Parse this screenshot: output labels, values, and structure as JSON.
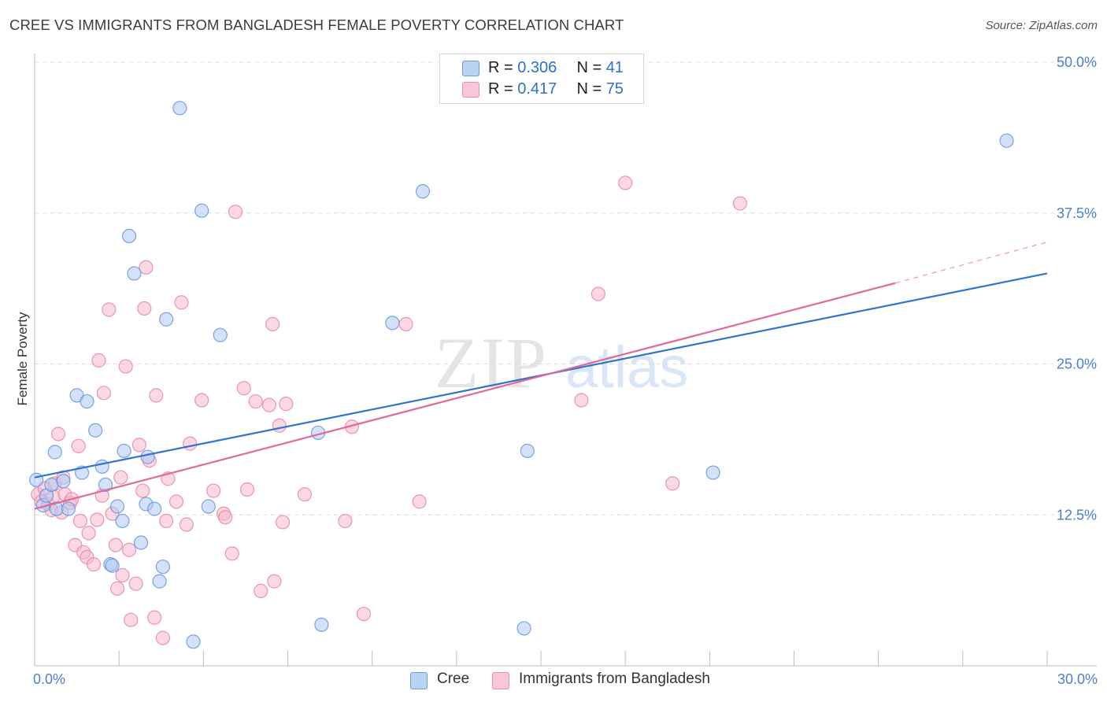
{
  "header": {
    "title": "CREE VS IMMIGRANTS FROM BANGLADESH FEMALE POVERTY CORRELATION CHART",
    "source": "Source: ZipAtlas.com"
  },
  "watermark": {
    "part1": "ZIP",
    "part2": "atlas"
  },
  "legend": {
    "rows": [
      {
        "r_label": "R = ",
        "r_value": "0.306",
        "n_label": "N = ",
        "n_value": "41"
      },
      {
        "r_label": "R = ",
        "r_value": "0.417",
        "n_label": "N = ",
        "n_value": "75"
      }
    ]
  },
  "bottom_legend": {
    "items": [
      {
        "label": "Cree"
      },
      {
        "label": "Immigrants from Bangladesh"
      }
    ]
  },
  "chart_data": {
    "type": "scatter",
    "title": "CREE VS IMMIGRANTS FROM BANGLADESH FEMALE POVERTY CORRELATION CHART",
    "xlabel": "",
    "ylabel": "Female Poverty",
    "xlim": [
      0,
      30
    ],
    "ylim": [
      0,
      50
    ],
    "x_tick_labels": [
      {
        "value": 0,
        "label": "0.0%"
      },
      {
        "value": 30,
        "label": "30.0%"
      }
    ],
    "y_tick_labels": [
      {
        "value": 12.5,
        "label": "12.5%"
      },
      {
        "value": 25,
        "label": "25.0%"
      },
      {
        "value": 37.5,
        "label": "37.5%"
      },
      {
        "value": 50,
        "label": "50.0%"
      }
    ],
    "colors": {
      "cree_fill": "#aecbf5",
      "cree_stroke": "#5b8fd8",
      "cree_line": "#2f74d0",
      "bangladesh_fill": "#f7b8cc",
      "bangladesh_stroke": "#e57fa0",
      "bangladesh_line": "#e0699a",
      "grid": "#dcdcdc",
      "tick_label": "#4a7fcf"
    },
    "series": [
      {
        "name": "Cree",
        "R": 0.306,
        "N": 41,
        "trend": {
          "x0": 0,
          "y0": 15.6,
          "x1": 30,
          "y1": 32.5
        },
        "points": [
          [
            0.05,
            15.4
          ],
          [
            0.25,
            13.3
          ],
          [
            0.35,
            14.1
          ],
          [
            0.5,
            15.0
          ],
          [
            0.6,
            17.7
          ],
          [
            0.65,
            13.0
          ],
          [
            0.85,
            15.3
          ],
          [
            1.0,
            13.0
          ],
          [
            1.25,
            22.4
          ],
          [
            1.4,
            16.0
          ],
          [
            1.55,
            21.9
          ],
          [
            1.8,
            19.5
          ],
          [
            2.0,
            16.5
          ],
          [
            2.1,
            15.0
          ],
          [
            2.25,
            8.4
          ],
          [
            2.45,
            13.2
          ],
          [
            2.6,
            12.0
          ],
          [
            2.65,
            17.8
          ],
          [
            2.8,
            35.6
          ],
          [
            2.95,
            32.5
          ],
          [
            3.15,
            10.2
          ],
          [
            3.3,
            13.4
          ],
          [
            3.35,
            17.3
          ],
          [
            3.55,
            13.0
          ],
          [
            3.7,
            7.0
          ],
          [
            3.8,
            8.2
          ],
          [
            3.9,
            28.7
          ],
          [
            4.3,
            46.2
          ],
          [
            4.7,
            2.0
          ],
          [
            4.95,
            37.7
          ],
          [
            5.15,
            13.2
          ],
          [
            5.5,
            27.4
          ],
          [
            8.5,
            3.4
          ],
          [
            8.4,
            19.3
          ],
          [
            10.6,
            28.4
          ],
          [
            11.5,
            39.3
          ],
          [
            14.6,
            17.8
          ],
          [
            14.5,
            3.1
          ],
          [
            20.1,
            16.0
          ],
          [
            28.8,
            43.5
          ],
          [
            2.3,
            8.3
          ]
        ]
      },
      {
        "name": "Immigrants from Bangladesh",
        "R": 0.417,
        "N": 75,
        "trend": {
          "x0": 0,
          "y0": 13.0,
          "x1": 25.5,
          "y1": 31.7
        },
        "trend_dashed": {
          "x0": 25.5,
          "y0": 31.7,
          "x1": 30,
          "y1": 35.1
        },
        "points": [
          [
            0.1,
            14.2
          ],
          [
            0.2,
            13.6
          ],
          [
            0.3,
            14.7
          ],
          [
            0.4,
            13.4
          ],
          [
            0.5,
            12.9
          ],
          [
            0.55,
            14.0
          ],
          [
            0.6,
            15.1
          ],
          [
            0.7,
            19.2
          ],
          [
            0.8,
            12.7
          ],
          [
            0.85,
            15.6
          ],
          [
            0.9,
            14.2
          ],
          [
            1.05,
            13.5
          ],
          [
            1.1,
            13.8
          ],
          [
            1.2,
            10.0
          ],
          [
            1.3,
            18.2
          ],
          [
            1.35,
            12.0
          ],
          [
            1.45,
            9.4
          ],
          [
            1.55,
            9.0
          ],
          [
            1.6,
            11.0
          ],
          [
            1.75,
            8.4
          ],
          [
            1.85,
            12.1
          ],
          [
            1.9,
            25.3
          ],
          [
            2.0,
            14.1
          ],
          [
            2.05,
            22.6
          ],
          [
            2.2,
            29.5
          ],
          [
            2.3,
            12.6
          ],
          [
            2.4,
            10.0
          ],
          [
            2.45,
            6.4
          ],
          [
            2.55,
            15.6
          ],
          [
            2.6,
            7.5
          ],
          [
            2.7,
            24.8
          ],
          [
            2.8,
            9.6
          ],
          [
            2.85,
            3.8
          ],
          [
            3.0,
            6.8
          ],
          [
            3.1,
            18.3
          ],
          [
            3.2,
            14.5
          ],
          [
            3.25,
            29.6
          ],
          [
            3.3,
            33.0
          ],
          [
            3.4,
            17.0
          ],
          [
            3.55,
            4.0
          ],
          [
            3.6,
            22.4
          ],
          [
            3.8,
            2.3
          ],
          [
            3.9,
            12.0
          ],
          [
            3.95,
            15.5
          ],
          [
            4.2,
            13.6
          ],
          [
            4.35,
            30.1
          ],
          [
            4.5,
            11.7
          ],
          [
            4.6,
            18.4
          ],
          [
            4.95,
            22.0
          ],
          [
            5.3,
            14.5
          ],
          [
            5.6,
            12.6
          ],
          [
            5.65,
            12.3
          ],
          [
            5.85,
            9.3
          ],
          [
            5.95,
            37.6
          ],
          [
            6.2,
            23.0
          ],
          [
            6.3,
            14.6
          ],
          [
            6.55,
            21.9
          ],
          [
            6.7,
            6.2
          ],
          [
            6.95,
            21.6
          ],
          [
            7.05,
            28.3
          ],
          [
            7.1,
            7.0
          ],
          [
            7.25,
            19.9
          ],
          [
            7.35,
            11.9
          ],
          [
            7.45,
            21.7
          ],
          [
            8.0,
            14.2
          ],
          [
            9.2,
            12.0
          ],
          [
            9.4,
            19.8
          ],
          [
            9.75,
            4.3
          ],
          [
            11.0,
            28.3
          ],
          [
            11.4,
            13.6
          ],
          [
            16.2,
            22.0
          ],
          [
            16.7,
            30.8
          ],
          [
            17.5,
            40.0
          ],
          [
            18.9,
            15.1
          ],
          [
            20.9,
            38.3
          ]
        ]
      }
    ]
  }
}
